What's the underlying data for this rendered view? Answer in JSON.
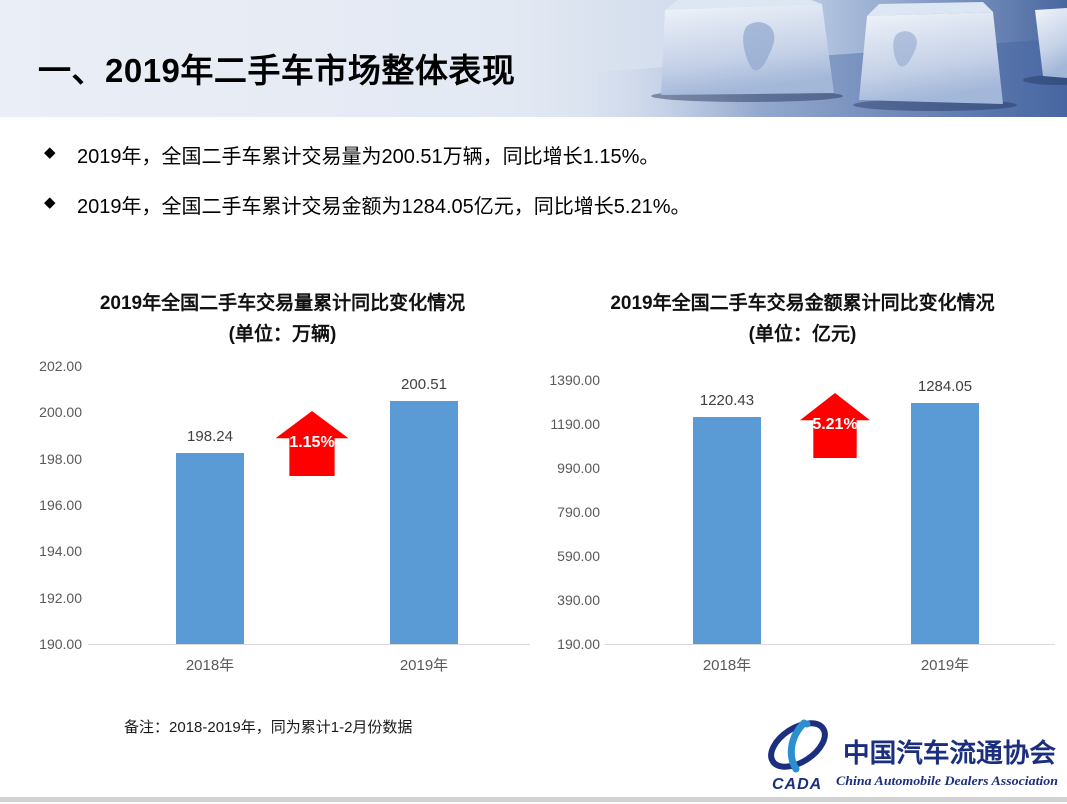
{
  "header": {
    "title": "一、2019年二手车市场整体表现"
  },
  "bullets": [
    {
      "marker": "◆",
      "text": "2019年，全国二手车累计交易量为200.51万辆，同比增长1.15%。"
    },
    {
      "marker": "◆",
      "text": "2019年，全国二手车累计交易金额为1284.05亿元，同比增长5.21%。"
    }
  ],
  "chart_data": [
    {
      "type": "bar",
      "title": "2019年全国二手车交易量累计同比变化情况",
      "subtitle": "(单位：万辆)",
      "unit": "万辆",
      "categories": [
        "2018年",
        "2019年"
      ],
      "values": [
        198.24,
        200.51
      ],
      "bar_labels": [
        "198.24",
        "200.51"
      ],
      "ylim": [
        190,
        202
      ],
      "yticks": [
        "202.00",
        "200.00",
        "198.00",
        "196.00",
        "194.00",
        "192.00",
        "190.00"
      ],
      "grid": false,
      "legend": false,
      "bar_color": "#5b9bd5",
      "growth_arrow": {
        "label": "1.15%",
        "direction": "up",
        "color": "#ff0000"
      }
    },
    {
      "type": "bar",
      "title": "2019年全国二手车交易金额累计同比变化情况",
      "subtitle": "(单位：亿元)",
      "unit": "亿元",
      "categories": [
        "2018年",
        "2019年"
      ],
      "values": [
        1220.43,
        1284.05
      ],
      "bar_labels": [
        "1220.43",
        "1284.05"
      ],
      "ylim": [
        190,
        1390
      ],
      "yticks": [
        "1390.00",
        "1190.00",
        "990.00",
        "790.00",
        "590.00",
        "390.00",
        "190.00"
      ],
      "grid": false,
      "legend": false,
      "bar_color": "#5b9bd5",
      "growth_arrow": {
        "label": "5.21%",
        "direction": "up",
        "color": "#ff0000"
      }
    }
  ],
  "note": "备注：2018-2019年，同为累计1-2月份数据",
  "logo": {
    "acronym": "CADA",
    "name_zh": "中国汽车流通协会",
    "name_en": "China Automobile Dealers Association"
  },
  "colors": {
    "bar_blue": "#5b9bd5",
    "arrow_red": "#ff0000",
    "logo_navy": "#1b2f7e",
    "axis_text": "#595959"
  }
}
